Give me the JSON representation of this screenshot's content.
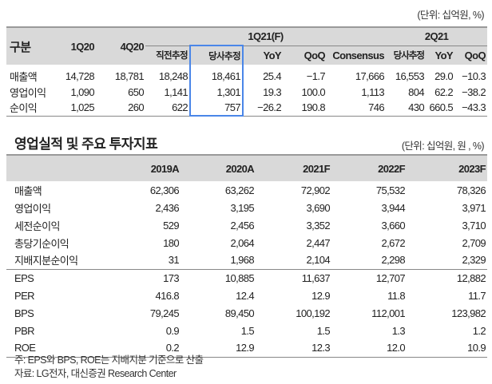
{
  "table1": {
    "unit": "(단위: 십억원, %)",
    "header": {
      "label": "구분",
      "c1": "1Q20",
      "c2": "4Q20",
      "group1": "1Q21(F)",
      "group2": "2Q21",
      "sub": [
        "직전추정",
        "당사추정",
        "YoY",
        "QoQ",
        "Consensus",
        "당사추정",
        "YoY",
        "QoQ"
      ]
    },
    "highlight_color": "#4a86e8",
    "rows": [
      {
        "label": "매출액",
        "v": [
          "14,728",
          "18,781",
          "18,248",
          "18,461",
          "25.4",
          "−1.7",
          "17,666",
          "16,553",
          "29.0",
          "−10.3"
        ]
      },
      {
        "label": "영업이익",
        "v": [
          "1,090",
          "650",
          "1,141",
          "1,301",
          "19.3",
          "100.0",
          "1,113",
          "804",
          "62.2",
          "−38.2"
        ]
      },
      {
        "label": "순이익",
        "v": [
          "1,025",
          "260",
          "622",
          "757",
          "−26.2",
          "190.8",
          "746",
          "430",
          "660.5",
          "−43.3"
        ]
      }
    ]
  },
  "table2": {
    "title": "영업실적 및 주요 투자지표",
    "unit": "(단위: 십억원, 원 , %)",
    "columns": [
      "2019A",
      "2020A",
      "2021F",
      "2022F",
      "2023F"
    ],
    "rows": [
      {
        "label": "매출액",
        "v": [
          "62,306",
          "63,262",
          "72,902",
          "75,532",
          "78,326"
        ]
      },
      {
        "label": "영업이익",
        "v": [
          "2,436",
          "3,195",
          "3,690",
          "3,944",
          "3,971"
        ]
      },
      {
        "label": "세전순이익",
        "v": [
          "529",
          "2,456",
          "3,352",
          "3,660",
          "3,710"
        ]
      },
      {
        "label": "총당기순이익",
        "v": [
          "180",
          "2,064",
          "2,447",
          "2,672",
          "2,709"
        ]
      },
      {
        "label": "지배지분순이익",
        "v": [
          "31",
          "1,968",
          "2,104",
          "2,298",
          "2,329"
        ]
      },
      {
        "label": "EPS",
        "v": [
          "173",
          "10,885",
          "11,637",
          "12,707",
          "12,882"
        ]
      },
      {
        "label": "PER",
        "v": [
          "416.8",
          "12.4",
          "12.9",
          "11.8",
          "11.7"
        ]
      },
      {
        "label": "BPS",
        "v": [
          "79,245",
          "89,450",
          "100,192",
          "112,001",
          "123,982"
        ]
      },
      {
        "label": "PBR",
        "v": [
          "0.9",
          "1.5",
          "1.5",
          "1.3",
          "1.2"
        ]
      },
      {
        "label": "ROE",
        "v": [
          "0.2",
          "12.9",
          "12.3",
          "12.0",
          "10.9"
        ]
      }
    ],
    "note": "주: EPS와 BPS, ROE는 지배지분 기준으로 산출",
    "source": "자료: LG전자, 대신증권 Research Center"
  }
}
